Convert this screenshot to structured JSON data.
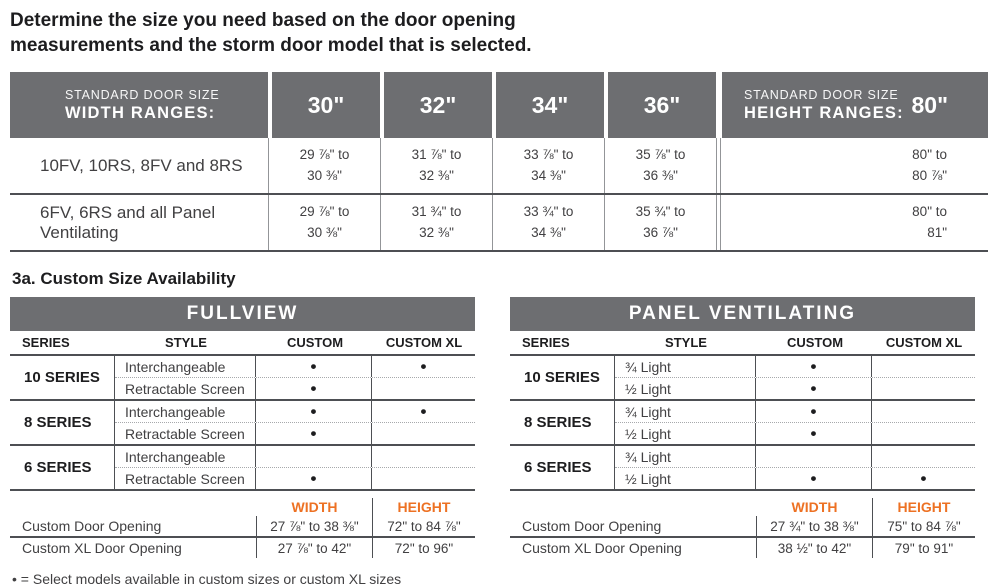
{
  "title": "Determine the size you need based on the door opening measurements and the storm door model that is selected.",
  "colors": {
    "header_gray": "#6d6e71",
    "accent_orange": "#ed7123",
    "text_dark": "#1d1d1f",
    "text_gray": "#414042"
  },
  "size_table": {
    "width_header": {
      "label_top": "STANDARD DOOR SIZE",
      "label_bottom": "WIDTH RANGES:",
      "columns": [
        "30\"",
        "32\"",
        "34\"",
        "36\""
      ]
    },
    "height_header": {
      "label_top": "STANDARD DOOR SIZE",
      "label_bottom": "HEIGHT RANGES:",
      "column": "80\""
    },
    "rows": [
      {
        "label": "10FV, 10RS, 8FV and 8RS",
        "widths": [
          "29 ⅞\" to\n30 ⅜\"",
          "31 ⅞\" to\n32 ⅜\"",
          "33 ⅞\" to\n34 ⅜\"",
          "35 ⅞\" to\n36 ⅜\""
        ],
        "height": "80\" to\n80 ⅞\""
      },
      {
        "label": "6FV, 6RS and all Panel Ventilating",
        "widths": [
          "29 ⅞\" to\n30 ⅜\"",
          "31 ¾\" to\n32 ⅜\"",
          "33 ¾\" to\n34 ⅜\"",
          "35 ¾\" to\n36 ⅞\""
        ],
        "height": "80\" to\n81\""
      }
    ]
  },
  "availability": {
    "heading": "3a. Custom Size Availability",
    "col_headers": [
      "SERIES",
      "STYLE",
      "CUSTOM",
      "CUSTOM XL"
    ],
    "tables": [
      {
        "title": "FULLVIEW",
        "groups": [
          {
            "series": "10 SERIES",
            "rows": [
              {
                "style": "Interchangeable",
                "custom": "•",
                "custom_xl": "•"
              },
              {
                "style": "Retractable Screen",
                "custom": "•",
                "custom_xl": ""
              }
            ]
          },
          {
            "series": "8 SERIES",
            "rows": [
              {
                "style": "Interchangeable",
                "custom": "•",
                "custom_xl": "•"
              },
              {
                "style": "Retractable Screen",
                "custom": "•",
                "custom_xl": ""
              }
            ]
          },
          {
            "series": "6 SERIES",
            "rows": [
              {
                "style": "Interchangeable",
                "custom": "",
                "custom_xl": ""
              },
              {
                "style": "Retractable Screen",
                "custom": "•",
                "custom_xl": ""
              }
            ]
          }
        ],
        "openings": {
          "width_label": "WIDTH",
          "height_label": "HEIGHT",
          "rows": [
            {
              "label": "Custom Door Opening",
              "width": "27 ⅞\" to 38 ⅜\"",
              "height": "72\" to 84 ⅞\""
            },
            {
              "label": "Custom XL Door Opening",
              "width": "27 ⅞\" to 42\"",
              "height": "72\" to 96\""
            }
          ]
        }
      },
      {
        "title": "PANEL VENTILATING",
        "groups": [
          {
            "series": "10 SERIES",
            "rows": [
              {
                "style": "¾ Light",
                "custom": "•",
                "custom_xl": ""
              },
              {
                "style": "½ Light",
                "custom": "•",
                "custom_xl": ""
              }
            ]
          },
          {
            "series": "8 SERIES",
            "rows": [
              {
                "style": "¾ Light",
                "custom": "•",
                "custom_xl": ""
              },
              {
                "style": "½ Light",
                "custom": "•",
                "custom_xl": ""
              }
            ]
          },
          {
            "series": "6 SERIES",
            "rows": [
              {
                "style": "¾ Light",
                "custom": "",
                "custom_xl": ""
              },
              {
                "style": "½ Light",
                "custom": "•",
                "custom_xl": "•"
              }
            ]
          }
        ],
        "openings": {
          "width_label": "WIDTH",
          "height_label": "HEIGHT",
          "rows": [
            {
              "label": "Custom Door Opening",
              "width": "27 ¾\" to 38 ⅜\"",
              "height": "75\" to 84 ⅞\""
            },
            {
              "label": "Custom XL Door Opening",
              "width": "38 ½\" to 42\"",
              "height": "79\" to 91\""
            }
          ]
        }
      }
    ],
    "footnote": "• = Select models available in custom sizes or custom XL sizes"
  }
}
